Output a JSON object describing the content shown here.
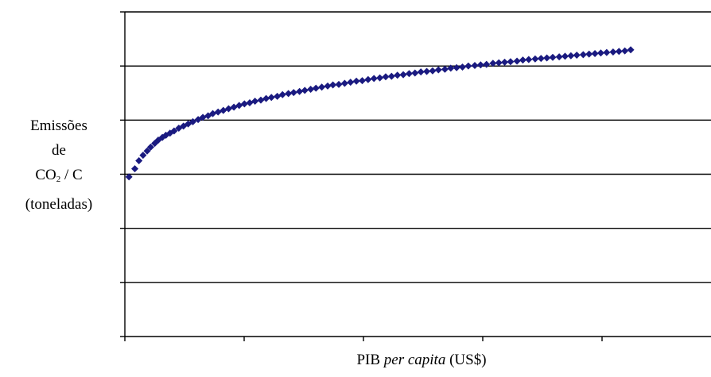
{
  "chart_data": {
    "type": "scatter",
    "title": "",
    "ylabel": {
      "line1": "Emissões",
      "line2": "de",
      "line3_main": "CO",
      "line3_sub": "2",
      "line3_rest": " / C",
      "line4": "(toneladas)"
    },
    "xlabel": {
      "part1": "PIB ",
      "part2": "per capita",
      "part3": " (US$)"
    },
    "xlim": [
      0,
      100
    ],
    "ylim": [
      0,
      6
    ],
    "x_ticks_count": 5,
    "y_gridlines": [
      1,
      2,
      3,
      4,
      5,
      6
    ],
    "grid": "horizontal",
    "marker_color": "#1a1a80",
    "marker": "diamond",
    "series": [
      {
        "x": [
          0.7,
          1.7,
          2.4,
          3.1,
          3.8,
          4.4,
          5.1,
          5.7,
          6.4,
          7.0,
          7.7,
          8.4,
          9.2,
          10.0,
          10.8,
          11.6,
          12.5,
          13.3,
          14.2,
          15.0,
          15.9,
          16.8,
          17.7,
          18.6,
          19.5,
          20.4,
          21.3,
          22.2,
          23.2,
          24.1,
          25.0,
          26.0,
          26.9,
          27.9,
          28.8,
          29.8,
          30.7,
          31.7,
          32.6,
          33.6,
          34.6,
          35.5,
          36.5,
          37.5,
          38.5,
          39.5,
          40.5,
          41.5,
          42.5,
          43.5,
          44.5,
          45.5,
          46.5,
          47.5,
          48.5,
          49.5,
          50.5,
          51.5,
          52.5,
          53.5,
          54.6,
          55.6,
          56.6,
          57.6,
          58.6,
          59.7,
          60.7,
          61.7,
          62.8,
          63.8,
          64.8,
          65.8,
          66.9,
          67.9,
          68.9,
          70.0,
          71.0,
          72.0,
          73.0,
          74.1,
          75.1,
          76.1,
          77.1,
          78.2,
          79.2,
          80.2,
          81.2,
          82.2,
          83.3,
          84.3,
          85.3,
          86.3
        ],
        "y": [
          2.95,
          3.1,
          3.25,
          3.35,
          3.43,
          3.5,
          3.57,
          3.63,
          3.68,
          3.72,
          3.76,
          3.8,
          3.85,
          3.89,
          3.93,
          3.97,
          4.01,
          4.05,
          4.08,
          4.12,
          4.15,
          4.18,
          4.21,
          4.24,
          4.27,
          4.3,
          4.32,
          4.35,
          4.37,
          4.4,
          4.42,
          4.44,
          4.47,
          4.49,
          4.51,
          4.53,
          4.55,
          4.57,
          4.59,
          4.61,
          4.63,
          4.65,
          4.66,
          4.68,
          4.7,
          4.72,
          4.73,
          4.75,
          4.77,
          4.78,
          4.8,
          4.81,
          4.83,
          4.84,
          4.86,
          4.87,
          4.89,
          4.9,
          4.91,
          4.93,
          4.94,
          4.96,
          4.97,
          4.98,
          5.0,
          5.01,
          5.02,
          5.03,
          5.05,
          5.06,
          5.07,
          5.08,
          5.09,
          5.11,
          5.12,
          5.13,
          5.14,
          5.15,
          5.16,
          5.17,
          5.18,
          5.19,
          5.2,
          5.21,
          5.22,
          5.23,
          5.24,
          5.25,
          5.26,
          5.27,
          5.28,
          5.3
        ]
      }
    ]
  }
}
